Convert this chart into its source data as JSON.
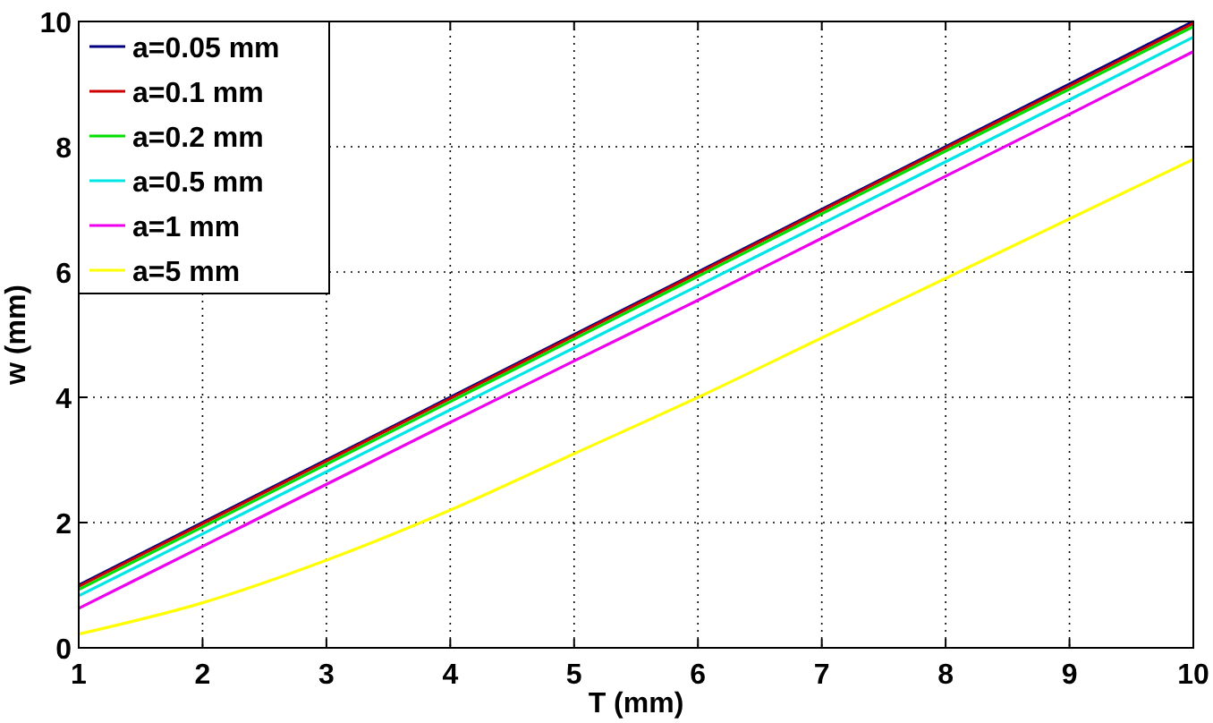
{
  "chart_data": {
    "type": "line",
    "xlabel": "T (mm)",
    "ylabel": "w (mm)",
    "x": [
      1,
      2,
      3,
      4,
      5,
      6,
      7,
      8,
      9,
      10
    ],
    "xlim": [
      1,
      10
    ],
    "ylim": [
      0,
      10
    ],
    "xticks": [
      1,
      2,
      3,
      4,
      5,
      6,
      7,
      8,
      9,
      10
    ],
    "yticks": [
      0,
      2,
      4,
      6,
      8,
      10
    ],
    "grid": true,
    "legend": "top left",
    "line_style": "solid",
    "series": [
      {
        "name": "a=0.05 mm",
        "color": "#000080",
        "values": [
          1.0,
          2.0,
          3.0,
          4.0,
          5.0,
          6.0,
          7.0,
          8.0,
          9.0,
          10.0
        ]
      },
      {
        "name": "a=0.1 mm",
        "color": "#cc0000",
        "values": [
          0.98,
          1.98,
          2.98,
          3.98,
          4.98,
          5.98,
          6.98,
          7.98,
          8.97,
          9.97
        ]
      },
      {
        "name": "a=0.2 mm",
        "color": "#00dd00",
        "values": [
          0.93,
          1.93,
          2.93,
          3.93,
          4.93,
          5.93,
          6.93,
          7.93,
          8.92,
          9.92
        ]
      },
      {
        "name": "a=0.5 mm",
        "color": "#00e5e5",
        "values": [
          0.83,
          1.82,
          2.81,
          3.8,
          4.79,
          5.78,
          6.77,
          7.76,
          8.75,
          9.75
        ]
      },
      {
        "name": "a=1 mm",
        "color": "#ee00ee",
        "values": [
          0.63,
          1.62,
          2.61,
          3.6,
          4.58,
          5.55,
          6.54,
          7.53,
          8.52,
          9.52
        ]
      },
      {
        "name": "a=5 mm",
        "color": "#ffff00",
        "values": [
          0.22,
          0.72,
          1.4,
          2.2,
          3.1,
          4.0,
          4.95,
          5.9,
          6.85,
          7.8
        ]
      }
    ]
  }
}
